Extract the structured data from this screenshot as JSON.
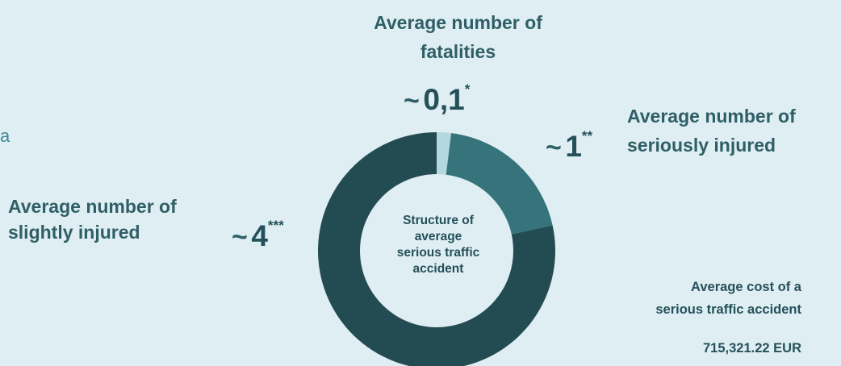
{
  "edge_fragment": "a",
  "center_label": {
    "line1": "Structure of",
    "line2": "average",
    "line3": "serious traffic",
    "line4": "accident"
  },
  "fatalities": {
    "title_line1": "Average number of",
    "title_line2": "fatalities",
    "tilde": "~",
    "value": "0,1",
    "footnote": "*"
  },
  "seriously": {
    "title_line1": "Average number of",
    "title_line2": "seriously injured",
    "tilde": "~",
    "value": "1",
    "footnote": "**"
  },
  "slightly": {
    "title_line1": "Average number of",
    "title_line2": "slightly injured",
    "tilde": "~",
    "value": "4",
    "footnote": "***"
  },
  "cost": {
    "line1": "Average cost of a",
    "line2": "serious traffic accident",
    "value": "715,321.22 EUR"
  },
  "colors": {
    "background": "#dfeef2",
    "fatalities": "#b3d9de",
    "seriously_injured": "#36737a",
    "slightly_injured": "#234b52",
    "center": "#dfeef2"
  },
  "chart_data": {
    "type": "pie",
    "donut": true,
    "categories": [
      "Fatalities",
      "Seriously injured",
      "Slightly injured"
    ],
    "values": [
      0.1,
      1,
      4
    ]
  }
}
